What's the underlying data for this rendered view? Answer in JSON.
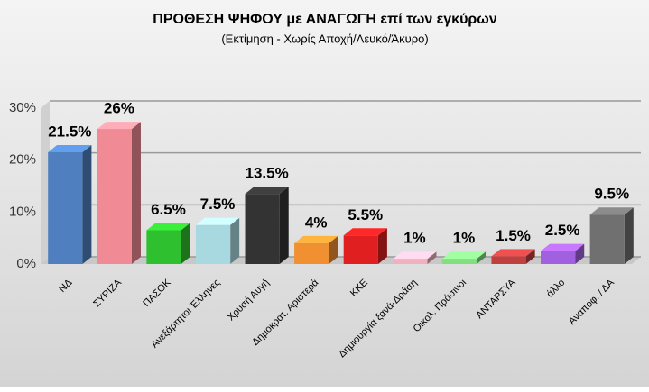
{
  "chart_data": {
    "type": "bar3d",
    "title": "ΠΡΟΘΕΣΗ ΨΗΦΟΥ με ΑΝΑΓΩΓΗ επί των εγκύρων",
    "subtitle": "(Εκτίμηση  -  Χωρίς Αποχή/Λευκό/Άκυρο)",
    "categories": [
      "ΝΔ",
      "ΣΥΡΙΖΑ",
      "ΠΑΣΟΚ",
      "Ανεξάρτητοι Έλληνες",
      "Χρυσή Αυγή",
      "Δημοκρατ. Αριστερά",
      "ΚΚΕ",
      "Δημιουργία ξανά-Δράση",
      "Οικολ. Πράσινοι",
      "ΑΝΤΑΡΣΥΑ",
      "άλλο",
      "Αναποφ. / ΔΑ"
    ],
    "values": [
      21.5,
      26,
      6.5,
      7.5,
      13.5,
      4,
      5.5,
      1,
      1,
      1.5,
      2.5,
      9.5
    ],
    "value_labels": [
      "21.5%",
      "26%",
      "6.5%",
      "7.5%",
      "13.5%",
      "4%",
      "5.5%",
      "1%",
      "1%",
      "1.5%",
      "2.5%",
      "9.5%"
    ],
    "colors": [
      "#4f7fbf",
      "#f08a94",
      "#2ec02e",
      "#a8d8e0",
      "#333333",
      "#f09030",
      "#e02020",
      "#f0b0c0",
      "#80e080",
      "#c04040",
      "#a060e0",
      "#707070"
    ],
    "ylim": [
      0,
      30
    ],
    "yticks": [
      {
        "value": 0,
        "label": "0%"
      },
      {
        "value": 10,
        "label": "10%"
      },
      {
        "value": 20,
        "label": "20%"
      },
      {
        "value": 30,
        "label": "30%"
      }
    ],
    "grid": true
  }
}
